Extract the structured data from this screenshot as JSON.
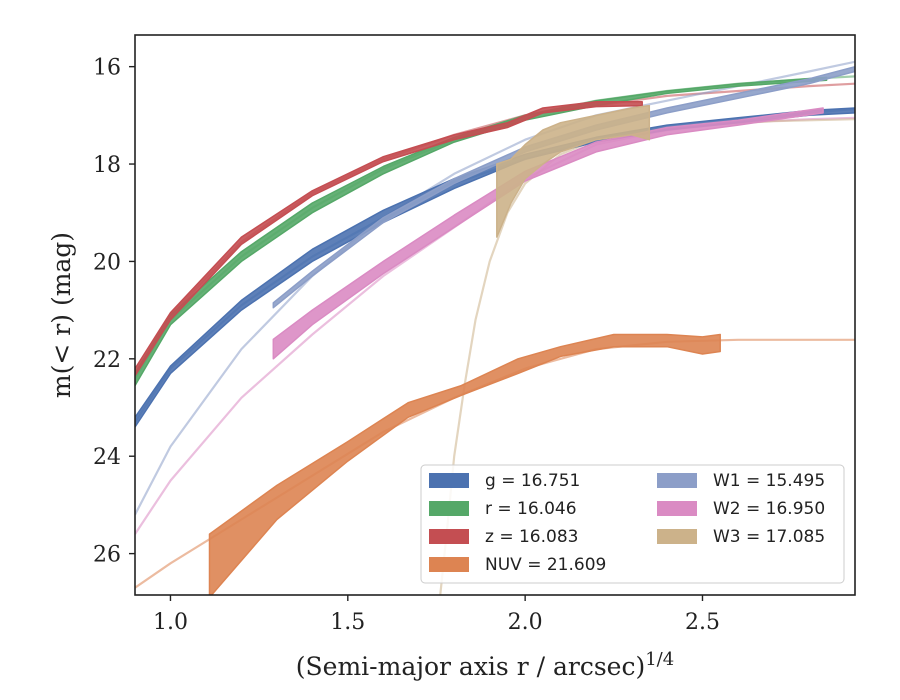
{
  "chart_data": {
    "type": "line",
    "xlabel": "(Semi-major axis r / arcsec)",
    "xlabel_sup": "1/4",
    "ylabel": "m(< r) (mag)",
    "xlim": [
      0.9,
      2.93
    ],
    "ylim": [
      26.85,
      15.35
    ],
    "y_inverted": true,
    "x_ticks": [
      1.0,
      1.5,
      2.0,
      2.5
    ],
    "x_tick_labels": [
      "1.0",
      "1.5",
      "2.0",
      "2.5"
    ],
    "y_ticks": [
      16,
      18,
      20,
      22,
      24,
      26
    ],
    "y_tick_labels": [
      "16",
      "18",
      "20",
      "22",
      "24",
      "26"
    ],
    "grid": false,
    "legend_position": "lower-right",
    "series": [
      {
        "name": "g",
        "legend": "g = 16.751",
        "color": "#4c72b0",
        "model_x": [
          0.9,
          1.0,
          1.2,
          1.4,
          1.6,
          1.8,
          2.0,
          2.2,
          2.4,
          2.6,
          2.8,
          2.93
        ],
        "model_y": [
          23.3,
          22.2,
          20.9,
          19.9,
          19.1,
          18.4,
          17.9,
          17.5,
          17.3,
          17.1,
          16.95,
          16.87
        ],
        "data_x": [
          0.9,
          1.0,
          1.2,
          1.4,
          1.6,
          1.8,
          2.0,
          2.2,
          2.4,
          2.6,
          2.8,
          2.93
        ],
        "data_lo": [
          23.2,
          22.15,
          20.8,
          19.75,
          18.95,
          18.3,
          17.8,
          17.45,
          17.2,
          17.05,
          16.9,
          16.85
        ],
        "data_hi": [
          23.4,
          22.3,
          21.0,
          20.0,
          19.2,
          18.5,
          17.9,
          17.55,
          17.3,
          17.15,
          17.0,
          16.95
        ]
      },
      {
        "name": "r",
        "legend": "r = 16.046",
        "color": "#55a868",
        "model_x": [
          0.9,
          1.0,
          1.2,
          1.4,
          1.6,
          1.8,
          2.0,
          2.2,
          2.4,
          2.6,
          2.8,
          2.93
        ],
        "model_y": [
          22.4,
          21.2,
          19.9,
          18.9,
          18.1,
          17.5,
          17.0,
          16.7,
          16.5,
          16.35,
          16.25,
          16.2
        ],
        "data_x": [
          0.9,
          1.0,
          1.2,
          1.4,
          1.6,
          1.8,
          2.0,
          2.2,
          2.4,
          2.6,
          2.85
        ],
        "data_lo": [
          22.3,
          21.1,
          19.8,
          18.8,
          18.05,
          17.45,
          17.0,
          16.7,
          16.5,
          16.35,
          16.22
        ],
        "data_hi": [
          22.55,
          21.3,
          20.0,
          19.0,
          18.2,
          17.55,
          17.1,
          16.8,
          16.55,
          16.4,
          16.28
        ]
      },
      {
        "name": "z",
        "legend": "z = 16.083",
        "color": "#c44e52",
        "model_x": [
          0.9,
          1.0,
          1.2,
          1.4,
          1.6,
          1.8,
          2.0,
          2.2,
          2.4,
          2.6,
          2.8,
          2.93
        ],
        "model_y": [
          22.3,
          21.1,
          19.6,
          18.6,
          17.9,
          17.4,
          17.0,
          16.8,
          16.6,
          16.5,
          16.4,
          16.35
        ],
        "data_x": [
          0.9,
          1.0,
          1.2,
          1.4,
          1.6,
          1.8,
          1.95,
          2.05,
          2.2,
          2.33
        ],
        "data_lo": [
          22.2,
          21.05,
          19.5,
          18.55,
          17.85,
          17.4,
          17.15,
          16.85,
          16.72,
          16.72
        ],
        "data_hi": [
          22.35,
          21.2,
          19.65,
          18.65,
          17.95,
          17.5,
          17.25,
          16.95,
          16.82,
          16.8
        ]
      },
      {
        "name": "NUV",
        "legend": "NUV = 21.609",
        "color": "#dd8452",
        "model_x": [
          0.9,
          1.0,
          1.2,
          1.4,
          1.6,
          1.8,
          2.0,
          2.2,
          2.4,
          2.6,
          2.8,
          2.93
        ],
        "model_y": [
          26.7,
          26.2,
          25.3,
          24.4,
          23.5,
          22.8,
          22.2,
          21.8,
          21.65,
          21.61,
          21.61,
          21.61
        ],
        "data_x": [
          1.11,
          1.3,
          1.5,
          1.67,
          1.82,
          1.98,
          2.1,
          2.25,
          2.4,
          2.5,
          2.55
        ],
        "data_lo": [
          26.9,
          25.3,
          24.1,
          23.2,
          22.75,
          22.3,
          21.95,
          21.75,
          21.75,
          21.9,
          21.85
        ],
        "data_hi": [
          25.6,
          24.6,
          23.7,
          22.9,
          22.55,
          22.0,
          21.75,
          21.5,
          21.5,
          21.55,
          21.5
        ]
      },
      {
        "name": "W1",
        "legend": "W1 = 15.495",
        "color": "#8c9ec8",
        "model_x": [
          0.9,
          1.0,
          1.2,
          1.4,
          1.6,
          1.8,
          2.0,
          2.2,
          2.4,
          2.6,
          2.8,
          2.93
        ],
        "model_y": [
          25.2,
          23.8,
          21.8,
          20.3,
          19.1,
          18.2,
          17.5,
          17.0,
          16.7,
          16.4,
          16.1,
          15.9
        ],
        "data_x": [
          1.29,
          1.4,
          1.6,
          1.8,
          2.0,
          2.2,
          2.4,
          2.6,
          2.8,
          2.93
        ],
        "data_lo": [
          20.85,
          20.2,
          19.1,
          18.3,
          17.65,
          17.2,
          16.85,
          16.55,
          16.25,
          16.0
        ],
        "data_hi": [
          20.95,
          20.3,
          19.2,
          18.4,
          17.75,
          17.3,
          16.95,
          16.65,
          16.35,
          16.1
        ]
      },
      {
        "name": "W2",
        "legend": "W2 = 16.950",
        "color": "#da8bc3",
        "model_x": [
          0.9,
          1.0,
          1.2,
          1.4,
          1.6,
          1.8,
          2.0,
          2.2,
          2.4,
          2.6,
          2.8,
          2.93
        ],
        "model_y": [
          25.6,
          24.5,
          22.8,
          21.5,
          20.3,
          19.3,
          18.3,
          17.6,
          17.3,
          17.15,
          17.08,
          17.05
        ],
        "data_x": [
          1.29,
          1.4,
          1.6,
          1.8,
          2.0,
          2.2,
          2.4,
          2.6,
          2.84
        ],
        "data_lo": [
          21.6,
          21.0,
          20.0,
          19.05,
          18.15,
          17.55,
          17.25,
          17.1,
          16.85
        ],
        "data_hi": [
          22.0,
          21.3,
          20.25,
          19.3,
          18.35,
          17.75,
          17.4,
          17.2,
          16.95
        ]
      },
      {
        "name": "W3",
        "legend": "W3 = 17.085",
        "color": "#ccb28a",
        "model_x": [
          1.76,
          1.78,
          1.8,
          1.83,
          1.86,
          1.9,
          1.95,
          2.0,
          2.1,
          2.2,
          2.35,
          2.5,
          2.7,
          2.93
        ],
        "model_y": [
          26.9,
          25.5,
          24.0,
          22.5,
          21.2,
          20.0,
          19.0,
          18.4,
          17.8,
          17.5,
          17.3,
          17.2,
          17.12,
          17.08
        ],
        "data_x": [
          1.92,
          1.96,
          2.0,
          2.05,
          2.1,
          2.2,
          2.3,
          2.35
        ],
        "data_lo": [
          19.5,
          18.8,
          18.3,
          18.0,
          17.75,
          17.5,
          17.4,
          17.5
        ],
        "data_hi": [
          18.0,
          17.9,
          17.6,
          17.3,
          17.15,
          17.0,
          16.85,
          16.8
        ]
      }
    ]
  }
}
